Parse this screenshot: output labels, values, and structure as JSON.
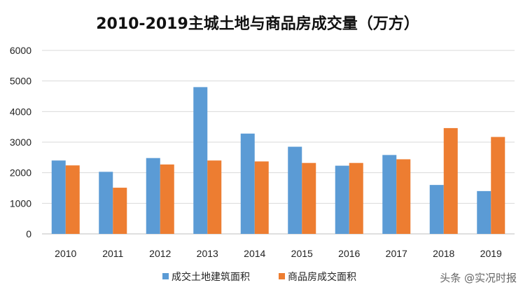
{
  "chart_data": {
    "type": "bar",
    "title": "2010-2019主城土地与商品房成交量（万方）",
    "categories": [
      "2010",
      "2011",
      "2012",
      "2013",
      "2014",
      "2015",
      "2016",
      "2017",
      "2018",
      "2019"
    ],
    "series": [
      {
        "name": "成交土地建筑面积",
        "color": "#5b9bd5",
        "values": [
          2400,
          2030,
          2480,
          4800,
          3280,
          2850,
          2230,
          2580,
          1600,
          1400
        ]
      },
      {
        "name": "商品房成交面积",
        "color": "#ed7d31",
        "values": [
          2240,
          1510,
          2270,
          2400,
          2370,
          2320,
          2320,
          2440,
          3460,
          3170
        ]
      }
    ],
    "ylim": [
      0,
      6000
    ],
    "yticks": [
      0,
      1000,
      2000,
      3000,
      4000,
      5000,
      6000
    ],
    "grid": true,
    "legend": "bottom-center"
  },
  "watermark": "头条 @实况时报"
}
